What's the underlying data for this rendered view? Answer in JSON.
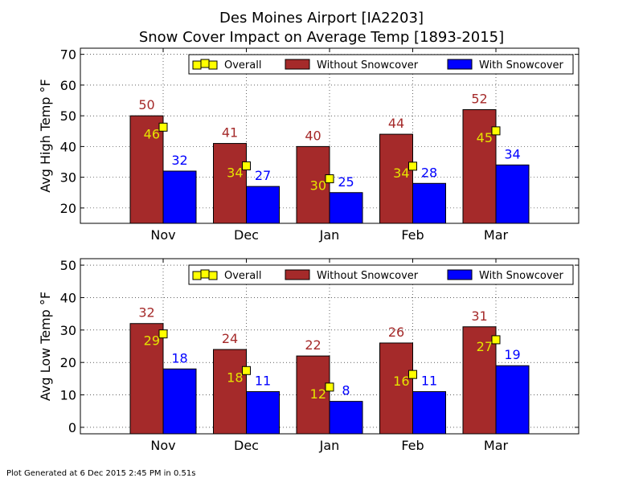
{
  "title_line1": "Des Moines Airport [IA2203]",
  "title_line2": "Snow Cover Impact on Average Temp [1893-2015]",
  "footer": "Plot Generated at 6 Dec 2015 2:45 PM in 0.51s",
  "colors": {
    "without": "#a52a2a",
    "with": "#0000ff",
    "overall": "#ffff00",
    "overall_text": "#e5e500"
  },
  "chart_data": [
    {
      "type": "bar",
      "ylabel": "Avg High Temp °F",
      "ylim": [
        15,
        72
      ],
      "yticks": [
        20,
        30,
        40,
        50,
        60,
        70
      ],
      "grid": true,
      "legend_position": "top-right",
      "categories": [
        "Nov",
        "Dec",
        "Jan",
        "Feb",
        "Mar"
      ],
      "series": [
        {
          "name": "Without Snowcover",
          "values": [
            50,
            41,
            40,
            44,
            52
          ],
          "labels": [
            "50",
            "41",
            "40",
            "44",
            "52"
          ]
        },
        {
          "name": "With Snowcover",
          "values": [
            32,
            27,
            25,
            28,
            34
          ],
          "labels": [
            "32",
            "27",
            "25",
            "28",
            "34"
          ]
        },
        {
          "name": "Overall",
          "values": [
            46.3,
            33.7,
            29.5,
            33.6,
            45.1
          ],
          "labels": [
            "46",
            "34",
            "30",
            "34",
            "45"
          ]
        }
      ]
    },
    {
      "type": "bar",
      "ylabel": "Avg Low Temp °F",
      "ylim": [
        -2,
        52
      ],
      "yticks": [
        0,
        10,
        20,
        30,
        40,
        50
      ],
      "grid": true,
      "legend_position": "top-right",
      "categories": [
        "Nov",
        "Dec",
        "Jan",
        "Feb",
        "Mar"
      ],
      "series": [
        {
          "name": "Without Snowcover",
          "values": [
            32,
            24,
            22,
            26,
            31
          ],
          "labels": [
            "32",
            "24",
            "22",
            "26",
            "31"
          ]
        },
        {
          "name": "With Snowcover",
          "values": [
            18,
            11,
            8,
            11,
            19
          ],
          "labels": [
            "18",
            "11",
            "8",
            "11",
            "19"
          ]
        },
        {
          "name": "Overall",
          "values": [
            28.8,
            17.5,
            12.4,
            16.3,
            27.0
          ],
          "labels": [
            "29",
            "18",
            "12",
            "16",
            "27"
          ]
        }
      ]
    }
  ]
}
